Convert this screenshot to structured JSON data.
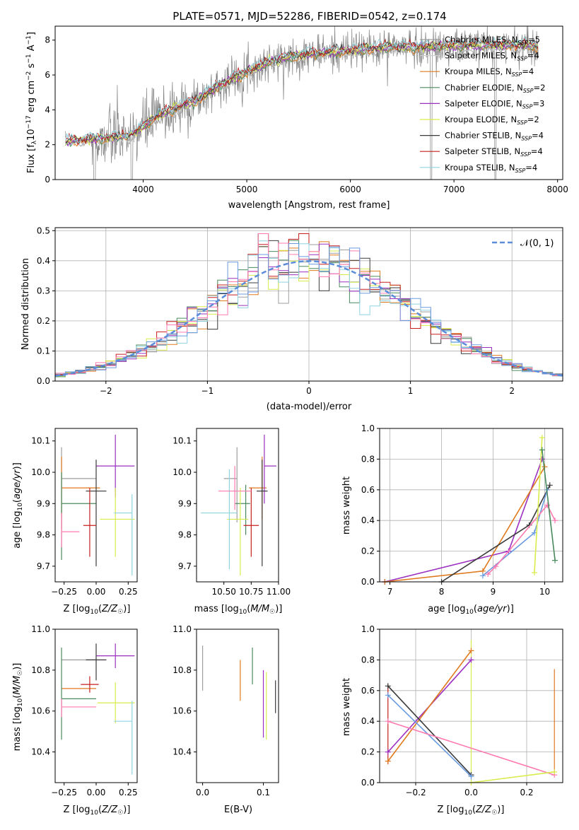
{
  "figure_title": "PLATE=0571, MJD=52286, FIBERID=0542, z=0.174",
  "colors": {
    "series": [
      "#9e9e9e",
      "#cccccc",
      "#e07a1f",
      "#4a8a5e",
      "#9b30c0",
      "#d8ec4c",
      "#3a3a3a",
      "#c61f1f",
      "#8fd4e0"
    ],
    "data": "#808080",
    "normal": "#5b8ddb",
    "series_extra": [
      "#ff7ab0",
      "#6a9be0"
    ]
  },
  "chart_data": [
    {
      "type": "line",
      "panel": "spectrum",
      "xlabel": "wavelength [Angstrom, rest frame]",
      "ylabel": "Flux [f_λ 10^-17 erg cm^-2 s^-1 A^-1]",
      "xlim": [
        3150,
        8050
      ],
      "ylim": [
        0,
        8.8
      ],
      "xticks": [
        4000,
        5000,
        6000,
        7000,
        8000
      ],
      "yticks": [
        0,
        2,
        4,
        6,
        8
      ],
      "grid": false,
      "legend_position": "upper-right",
      "series": [
        {
          "name": "Chabrier MILES, N_SSP=5",
          "label_main": "Chabrier MILES, N",
          "label_sub": "SSP",
          "label_end": "=5"
        },
        {
          "name": "Salpeter MILES, N_SSP=4",
          "label_main": "Salpeter MILES, N",
          "label_sub": "SSP",
          "label_end": "=4"
        },
        {
          "name": "Kroupa MILES, N_SSP=4",
          "label_main": "Kroupa MILES, N",
          "label_sub": "SSP",
          "label_end": "=4"
        },
        {
          "name": "Chabrier ELODIE, N_SSP=2",
          "label_main": "Chabrier ELODIE, N",
          "label_sub": "SSP",
          "label_end": "=2"
        },
        {
          "name": "Salpeter ELODIE, N_SSP=3",
          "label_main": "Salpeter ELODIE, N",
          "label_sub": "SSP",
          "label_end": "=3"
        },
        {
          "name": "Kroupa ELODIE, N_SSP=2",
          "label_main": "Kroupa ELODIE, N",
          "label_sub": "SSP",
          "label_end": "=2"
        },
        {
          "name": "Chabrier STELIB, N_SSP=4",
          "label_main": "Chabrier STELIB, N",
          "label_sub": "SSP",
          "label_end": "=4"
        },
        {
          "name": "Salpeter STELIB, N_SSP=4",
          "label_main": "Salpeter STELIB, N",
          "label_sub": "SSP",
          "label_end": "=4"
        },
        {
          "name": "Kroupa STELIB, N_SSP=4",
          "label_main": "Kroupa STELIB, N",
          "label_sub": "SSP",
          "label_end": "=4"
        }
      ],
      "continuum": [
        [
          3250,
          2.2
        ],
        [
          3500,
          2.3
        ],
        [
          3700,
          2.4
        ],
        [
          3900,
          2.6
        ],
        [
          4000,
          3.0
        ],
        [
          4100,
          3.5
        ],
        [
          4200,
          3.8
        ],
        [
          4300,
          4.0
        ],
        [
          4400,
          4.3
        ],
        [
          4500,
          4.5
        ],
        [
          4600,
          4.8
        ],
        [
          4700,
          5.3
        ],
        [
          4800,
          5.6
        ],
        [
          4900,
          5.9
        ],
        [
          5000,
          6.2
        ],
        [
          5100,
          6.4
        ],
        [
          5200,
          6.7
        ],
        [
          5400,
          7.0
        ],
        [
          5600,
          7.2
        ],
        [
          5800,
          7.3
        ],
        [
          6000,
          7.4
        ],
        [
          6200,
          7.5
        ],
        [
          6400,
          7.6
        ],
        [
          6600,
          7.6
        ],
        [
          6800,
          7.6
        ],
        [
          7000,
          7.65
        ],
        [
          7200,
          7.7
        ],
        [
          7400,
          7.7
        ],
        [
          7600,
          7.7
        ],
        [
          7800,
          7.65
        ]
      ]
    },
    {
      "type": "histogram",
      "panel": "residuals",
      "xlabel": "(data-model)/error",
      "ylabel": "Normed distribution",
      "xlim": [
        -2.5,
        2.5
      ],
      "ylim": [
        0,
        0.51
      ],
      "xticks": [
        -2,
        -1,
        0,
        1,
        2
      ],
      "yticks": [
        0.0,
        0.1,
        0.2,
        0.3,
        0.4,
        0.5
      ],
      "grid": true,
      "legend": "𝒩(0, 1)",
      "legend_position": "upper-right",
      "bin_width": 0.1
    },
    {
      "type": "errorbar",
      "panel": "age-vs-Z",
      "xlabel": "Z [log10(Z/Z☉)]",
      "ylabel": "age [log10(age/yr)]",
      "xlim": [
        -0.32,
        0.32
      ],
      "ylim": [
        9.65,
        10.14
      ],
      "xticks": [
        -0.25,
        0.0,
        0.25
      ],
      "xticklabels": [
        "−0.25",
        "0.00",
        "0.25"
      ],
      "yticks": [
        9.7,
        9.8,
        9.9,
        10.0,
        10.1
      ],
      "points": [
        {
          "x": -0.27,
          "y": 9.98,
          "xerr": [
            0.0,
            0.27
          ],
          "yerr": [
            0.12,
            0.1
          ]
        },
        {
          "x": -0.27,
          "y": 9.95,
          "xerr": [
            0.0,
            0.3
          ],
          "yerr": [
            0.13,
            0.1
          ]
        },
        {
          "x": -0.27,
          "y": 9.9,
          "xerr": [
            0.0,
            0.27
          ],
          "yerr": [
            0.18,
            0.1
          ]
        },
        {
          "x": 0.15,
          "y": 10.02,
          "xerr": [
            0.15,
            0.15
          ],
          "yerr": [
            0.1,
            0.1
          ]
        },
        {
          "x": 0.15,
          "y": 9.85,
          "xerr": [
            0.12,
            0.15
          ],
          "yerr": [
            0.12,
            0.1
          ]
        },
        {
          "x": 0.0,
          "y": 9.94,
          "xerr": [
            0.08,
            0.08
          ],
          "yerr": [
            0.24,
            0.1
          ]
        },
        {
          "x": -0.05,
          "y": 9.83,
          "xerr": [
            0.05,
            0.05
          ],
          "yerr": [
            0.1,
            0.12
          ]
        },
        {
          "x": 0.28,
          "y": 9.87,
          "xerr": [
            0.14,
            0.0
          ],
          "yerr": [
            0.2,
            0.06
          ]
        },
        {
          "x": -0.27,
          "y": 9.81,
          "xerr": [
            0.0,
            0.14
          ],
          "yerr": [
            0.05,
            0.06
          ]
        }
      ]
    },
    {
      "type": "errorbar",
      "panel": "age-vs-mass",
      "xlabel": "mass [log10(M/M☉)]",
      "ylabel": "",
      "xlim": [
        10.25,
        11.0
      ],
      "ylim": [
        9.65,
        10.14
      ],
      "xticks": [
        10.5,
        10.75,
        11.0
      ],
      "xticklabels": [
        "10.50",
        "10.75",
        "11.00"
      ],
      "yticks": [
        9.7,
        9.8,
        9.9,
        10.0,
        10.1
      ],
      "points": [
        {
          "x": 10.62,
          "y": 9.98,
          "xerr": [
            0.12,
            0.0
          ],
          "yerr": [
            0.14,
            0.1
          ]
        },
        {
          "x": 10.85,
          "y": 9.95,
          "xerr": [
            0.12,
            0.04
          ],
          "yerr": [
            0.1,
            0.1
          ]
        },
        {
          "x": 10.7,
          "y": 9.9,
          "xerr": [
            0.1,
            0.04
          ],
          "yerr": [
            0.1,
            0.06
          ]
        },
        {
          "x": 10.87,
          "y": 10.02,
          "xerr": [
            0.0,
            0.11
          ],
          "yerr": [
            0.12,
            0.1
          ]
        },
        {
          "x": 10.65,
          "y": 9.85,
          "xerr": [
            0.12,
            0.07
          ],
          "yerr": [
            0.18,
            0.1
          ]
        },
        {
          "x": 10.85,
          "y": 9.94,
          "xerr": [
            0.05,
            0.05
          ],
          "yerr": [
            0.24,
            0.1
          ]
        },
        {
          "x": 10.75,
          "y": 9.83,
          "xerr": [
            0.07,
            0.07
          ],
          "yerr": [
            0.1,
            0.12
          ]
        },
        {
          "x": 10.55,
          "y": 9.87,
          "xerr": [
            0.26,
            0.07
          ],
          "yerr": [
            0.18,
            0.14
          ]
        },
        {
          "x": 10.6,
          "y": 9.94,
          "xerr": [
            0.15,
            0.15
          ],
          "yerr": [
            0.06,
            0.08
          ]
        }
      ]
    },
    {
      "type": "line",
      "panel": "mass-weight-vs-age",
      "xlabel": "age [log10(age/yr)]",
      "ylabel": "mass weight",
      "xlim": [
        6.8,
        10.35
      ],
      "ylim": [
        0,
        1
      ],
      "xticks": [
        7,
        8,
        9,
        10
      ],
      "yticks": [
        0.0,
        0.2,
        0.4,
        0.6,
        0.8,
        1.0
      ],
      "grid": true,
      "series": [
        {
          "x": [
            6.9,
            9.3,
            9.95
          ],
          "y": [
            0.0,
            0.2,
            0.8
          ]
        },
        {
          "x": [
            6.9,
            8.8,
            10.0
          ],
          "y": [
            0.0,
            0.07,
            0.75
          ]
        },
        {
          "x": [
            8.0,
            9.7,
            10.1
          ],
          "y": [
            0.0,
            0.37,
            0.63
          ]
        },
        {
          "x": [
            8.8,
            9.8,
            10.05
          ],
          "y": [
            0.04,
            0.32,
            0.6
          ]
        },
        {
          "x": [
            8.9,
            9.05,
            10.05,
            10.2
          ],
          "y": [
            0.05,
            0.1,
            0.5,
            0.4
          ]
        },
        {
          "x": [
            9.8,
            9.95
          ],
          "y": [
            0.06,
            0.94
          ]
        },
        {
          "x": [
            9.95,
            10.2
          ],
          "y": [
            0.86,
            0.14
          ]
        }
      ]
    },
    {
      "type": "errorbar",
      "panel": "mass-vs-Z",
      "xlabel": "Z [log10(Z/Z☉)]",
      "ylabel": "mass [log10(M/M☉)]",
      "xlim": [
        -0.32,
        0.32
      ],
      "ylim": [
        10.25,
        11.0
      ],
      "xticks": [
        -0.25,
        0.0,
        0.25
      ],
      "xticklabels": [
        "−0.25",
        "0.00",
        "0.25"
      ],
      "yticks": [
        10.4,
        10.6,
        10.8,
        11.0
      ],
      "points": [
        {
          "x": -0.27,
          "y": 10.85,
          "xerr": [
            0.0,
            0.27
          ],
          "yerr": [
            0.0,
            0.0
          ]
        },
        {
          "x": -0.27,
          "y": 10.71,
          "xerr": [
            0.0,
            0.27
          ],
          "yerr": [
            0.0,
            0.0
          ]
        },
        {
          "x": -0.27,
          "y": 10.66,
          "xerr": [
            0.0,
            0.27
          ],
          "yerr": [
            0.2,
            0.25
          ]
        },
        {
          "x": 0.15,
          "y": 10.87,
          "xerr": [
            0.15,
            0.15
          ],
          "yerr": [
            0.06,
            0.06
          ]
        },
        {
          "x": 0.15,
          "y": 10.64,
          "xerr": [
            0.14,
            0.15
          ],
          "yerr": [
            0.1,
            0.1
          ]
        },
        {
          "x": 0.0,
          "y": 10.85,
          "xerr": [
            0.08,
            0.08
          ],
          "yerr": [
            0.1,
            0.08
          ]
        },
        {
          "x": -0.05,
          "y": 10.73,
          "xerr": [
            0.07,
            0.07
          ],
          "yerr": [
            0.04,
            0.04
          ]
        },
        {
          "x": 0.28,
          "y": 10.55,
          "xerr": [
            0.14,
            0.0
          ],
          "yerr": [
            0.26,
            0.1
          ]
        },
        {
          "x": -0.27,
          "y": 10.62,
          "xerr": [
            0.0,
            0.27
          ],
          "yerr": [
            0.05,
            0.04
          ]
        }
      ]
    },
    {
      "type": "errorbar",
      "panel": "mass-vs-ebv",
      "xlabel": "E(B-V)",
      "ylabel": "",
      "xlim": [
        -0.01,
        0.125
      ],
      "ylim": [
        10.25,
        11.0
      ],
      "xticks": [
        0.0,
        0.1
      ],
      "xticklabels": [
        "0.0",
        "0.1"
      ],
      "yticks": [
        10.4,
        10.6,
        10.8,
        11.0
      ],
      "points": [
        {
          "x": 0.0,
          "y": 10.81,
          "yerr": [
            0.11,
            0.11
          ]
        },
        {
          "x": 0.062,
          "y": 10.75,
          "yerr": [
            0.1,
            0.1
          ]
        },
        {
          "x": 0.082,
          "y": 10.81,
          "yerr": [
            0.08,
            0.1
          ]
        },
        {
          "x": 0.1,
          "y": 10.63,
          "yerr": [
            0.16,
            0.17
          ]
        },
        {
          "x": 0.105,
          "y": 10.62,
          "yerr": [
            0.16,
            0.17
          ]
        },
        {
          "x": 0.12,
          "y": 10.65,
          "yerr": [
            0.06,
            0.1
          ]
        }
      ]
    },
    {
      "type": "line",
      "panel": "mass-weight-vs-Z",
      "xlabel": "Z [log10(Z/Z☉)]",
      "ylabel": "mass weight",
      "xlim": [
        -0.33,
        0.33
      ],
      "ylim": [
        0,
        1
      ],
      "xticks": [
        -0.2,
        0.0,
        0.2
      ],
      "xticklabels": [
        "−0.2",
        "0.0",
        "0.2"
      ],
      "yticks": [
        0.0,
        0.2,
        0.4,
        0.6,
        0.8,
        1.0
      ],
      "grid": true,
      "series": [
        {
          "x": [
            -0.3,
            0.0
          ],
          "y": [
            0.2,
            0.8
          ]
        },
        {
          "x": [
            -0.3,
            0.0
          ],
          "y": [
            0.14,
            0.86
          ]
        },
        {
          "x": [
            -0.3,
            0.0
          ],
          "y": [
            0.63,
            0.05
          ]
        },
        {
          "x": [
            -0.3,
            0.0
          ],
          "y": [
            0.57,
            0.04
          ]
        },
        {
          "x": [
            -0.3,
            0.3
          ],
          "y": [
            0.4,
            0.05
          ]
        },
        {
          "x": [
            0.0,
            0.3
          ],
          "y": [
            0.0,
            0.07
          ]
        }
      ],
      "vertical_bars": [
        {
          "x": 0.0,
          "y": [
            0.05,
            0.93
          ]
        },
        {
          "x": 0.3,
          "y": [
            0.05,
            0.74
          ]
        },
        {
          "x": -0.3,
          "y": [
            0.12,
            0.64
          ]
        }
      ]
    }
  ]
}
